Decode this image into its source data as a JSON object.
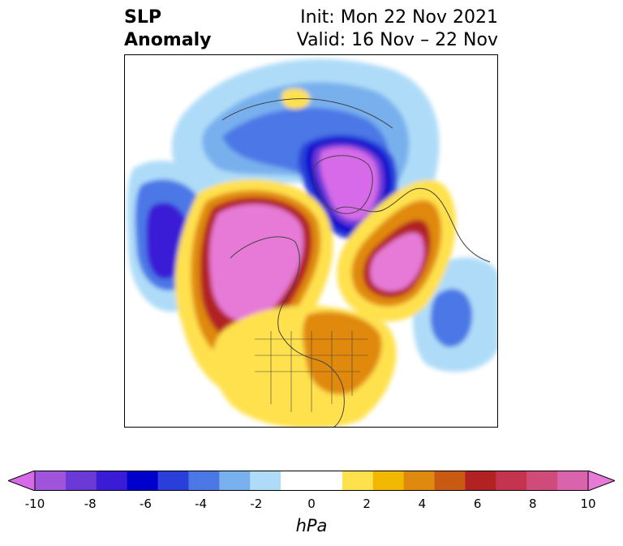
{
  "title": {
    "variable": "SLP",
    "variable_line2": "Anomaly",
    "init": "Init: Mon 22 Nov 2021",
    "valid": "Valid: 16 Nov – 22 Nov"
  },
  "map": {
    "projection": "polar stereographic (north)",
    "features": [
      "coastlines",
      "country borders",
      "US state borders"
    ],
    "anomaly_regions": [
      {
        "region": "central Arctic / Greenland-Siberia",
        "sign": "negative",
        "peak_hPa": -10
      },
      {
        "region": "Alaska / Bering Sea",
        "sign": "positive",
        "peak_hPa": 10
      },
      {
        "region": "northern Scandinavia / Barents Sea",
        "sign": "positive",
        "peak_hPa": 10
      },
      {
        "region": "North Pacific",
        "sign": "negative",
        "peak_hPa": -7
      },
      {
        "region": "eastern North Atlantic",
        "sign": "negative",
        "peak_hPa": -4
      },
      {
        "region": "central Siberia (small)",
        "sign": "positive",
        "peak_hPa": 2
      },
      {
        "region": "western/central North America",
        "sign": "positive",
        "peak_hPa": 5
      }
    ]
  },
  "colorbar": {
    "unit": "hPa",
    "extend": "both",
    "ticks": [
      "-10",
      "-8",
      "-6",
      "-4",
      "-2",
      "0",
      "2",
      "4",
      "6",
      "8",
      "10"
    ],
    "colors": [
      "#d76ae9",
      "#a054dc",
      "#6b3ad6",
      "#3a1cd6",
      "#0000cc",
      "#2a3fd9",
      "#4c78e6",
      "#78b0ee",
      "#aedcf8",
      "#ffffff",
      "#ffffff",
      "#ffe14d",
      "#f2b700",
      "#e0890f",
      "#c85a12",
      "#b22222",
      "#c4344e",
      "#d04a7a",
      "#da63ad",
      "#e67ad6"
    ]
  }
}
